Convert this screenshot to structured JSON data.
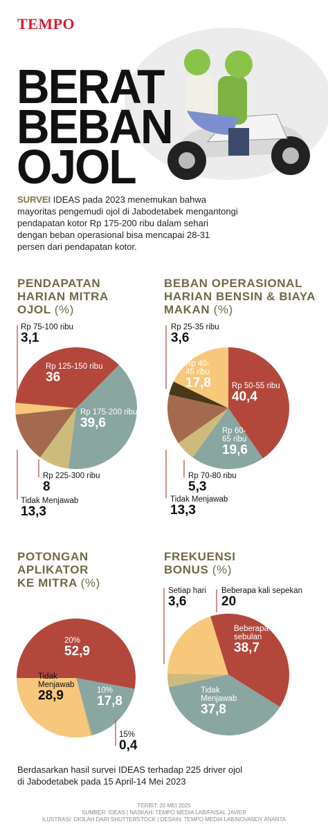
{
  "header": {
    "brand": "TEMPO",
    "title_lines": [
      "BERAT",
      "BEBAN",
      "OJOL"
    ]
  },
  "intro": {
    "lead": "SURVEI",
    "text": "IDEAS pada 2023 menemukan bahwa mayoritas pengemudi ojol di Jabodetabek mengantongi pendapatan kotor Rp 175-200 ribu dalam sehari dengan beban operasional bisa mencapai 28-31 persen dari pendapatan kotor."
  },
  "chart_data": [
    {
      "type": "pie",
      "title": "PENDAPATAN HARIAN MITRA OJOL",
      "unit": "(%)",
      "categories": [
        "Rp 75-100 ribu",
        "Rp 125-150 ribu",
        "Rp 175-200 ribu",
        "Rp 225-300 ribu",
        "Tidak Menjawab"
      ],
      "values": [
        3.1,
        36,
        39.6,
        8,
        13.3
      ],
      "value_labels": [
        "3,1",
        "36",
        "39,6",
        "8",
        "13,3"
      ],
      "colors": [
        "#f7c77b",
        "#b3473c",
        "#89a6a1",
        "#cdbb7c",
        "#a46a50"
      ]
    },
    {
      "type": "pie",
      "title": "BEBAN OPERASIONAL HARIAN BENSIN & BIAYA MAKAN",
      "unit": "(%)",
      "categories": [
        "Rp 25-35 ribu",
        "Rp 40-45 ribu",
        "Rp 50-55 ribu",
        "Rp 60-65 ribu",
        "Rp 70-80 ribu",
        "Tidak Menjawab"
      ],
      "values": [
        3.6,
        17.8,
        40.4,
        19.6,
        5.3,
        13.3
      ],
      "value_labels": [
        "3,6",
        "17,8",
        "40,4",
        "19,6",
        "5,3",
        "13,3"
      ],
      "colors": [
        "#4a3818",
        "#f7c77b",
        "#b3473c",
        "#89a6a1",
        "#cdbb7c",
        "#a46a50"
      ]
    },
    {
      "type": "pie",
      "title": "POTONGAN APLIKATOR KE MITRA",
      "unit": "(%)",
      "categories": [
        "20%",
        "10%",
        "15%",
        "Tidak Menjawab"
      ],
      "values": [
        52.9,
        17.8,
        0.4,
        28.9
      ],
      "value_labels": [
        "52,9",
        "17,8",
        "0,4",
        "28,9"
      ],
      "colors": [
        "#b3473c",
        "#89a6a1",
        "#cdbb7c",
        "#f7c77b"
      ]
    },
    {
      "type": "pie",
      "title": "FREKUENSI BONUS",
      "unit": "(%)",
      "categories": [
        "Setiap hari",
        "Beberapa kali sepekan",
        "Beberapa kali sebulan",
        "Tidak Menjawab"
      ],
      "values": [
        3.6,
        20,
        38.7,
        37.8
      ],
      "value_labels": [
        "3,6",
        "20",
        "38,7",
        "37,8"
      ],
      "colors": [
        "#cdbb7c",
        "#f7c77b",
        "#b3473c",
        "#89a6a1"
      ]
    }
  ],
  "footer": {
    "note_lines": [
      "Berdasarkan hasil survei IDEAS terhadap 225 driver ojol",
      "di Jabodetabek pada 15 April-14 Mei 2023"
    ],
    "credits": [
      "TERBIT: 20 MEI 2025",
      "SUMBER: IDEAS | NASKAH: TEMPO MEDIA LAB/FAISAL JAVIER",
      "ILUSTRASI: DIOLAH DARI SHUTTERSTOCK | DESAIN: TEMPO MEDIA LAB/NOVANDY ANANTA"
    ]
  }
}
